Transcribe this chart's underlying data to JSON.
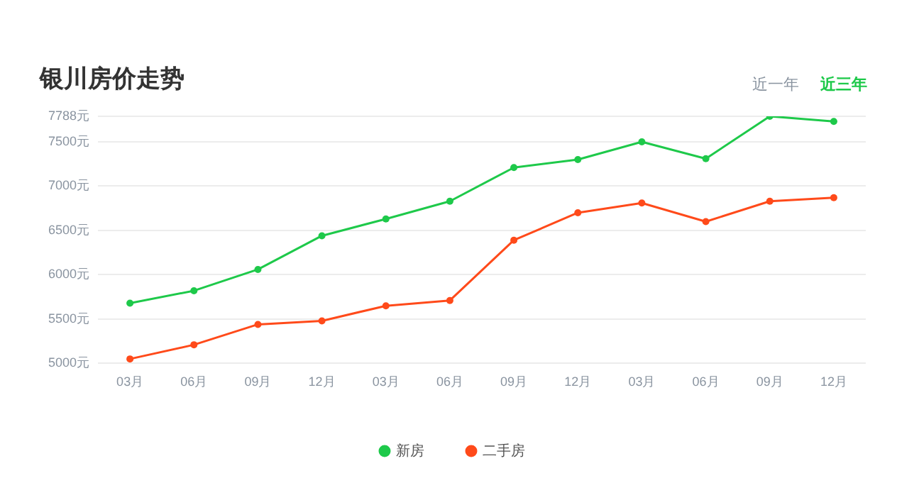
{
  "chart_data": {
    "type": "line",
    "title": "银川房价走势",
    "annotations": [
      "近一年",
      "近三年"
    ],
    "categories": [
      "03月",
      "06月",
      "09月",
      "12月",
      "03月",
      "06月",
      "09月",
      "12月",
      "03月",
      "06月",
      "09月",
      "12月"
    ],
    "series": [
      {
        "name": "新房",
        "color": "#1ec94a",
        "values": [
          5680,
          5820,
          6060,
          6440,
          6630,
          6830,
          7210,
          7300,
          7500,
          7310,
          7788,
          7730
        ]
      },
      {
        "name": "二手房",
        "color": "#ff4a1a",
        "values": [
          5050,
          5210,
          5440,
          5480,
          5650,
          5710,
          6390,
          6700,
          6810,
          6600,
          6830,
          6870
        ]
      }
    ],
    "ylim": [
      5000,
      7788
    ],
    "yticks": [
      {
        "value": 5000,
        "label": "5000元"
      },
      {
        "value": 5500,
        "label": "5500元"
      },
      {
        "value": 6000,
        "label": "6000元"
      },
      {
        "value": 6500,
        "label": "6500元"
      },
      {
        "value": 7000,
        "label": "7000元"
      },
      {
        "value": 7500,
        "label": "7500元"
      },
      {
        "value": 7788,
        "label": "7788元"
      }
    ],
    "grid": "y",
    "legend": "bottom",
    "marker": "circle",
    "line_style": "solid"
  }
}
